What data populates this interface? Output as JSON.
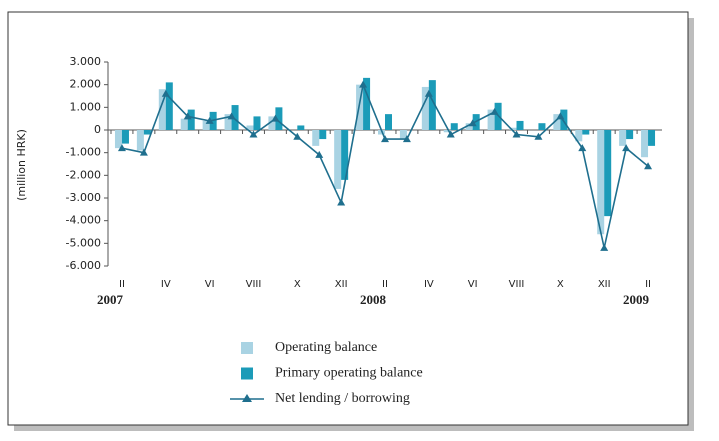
{
  "chart_data": {
    "type": "bar_line",
    "y_label": "(million HRK)",
    "categories": [
      "II",
      null,
      "IV",
      null,
      "VI",
      null,
      "VIII",
      null,
      "X",
      null,
      "XII",
      null,
      "II",
      null,
      "IV",
      null,
      "VI",
      null,
      "VIII",
      null,
      "X",
      null,
      "XII",
      null,
      "II"
    ],
    "year_labels": [
      "2007",
      "2008",
      "2009"
    ],
    "ylim": [
      -6000,
      3000
    ],
    "yticks": [
      {
        "value": 3000,
        "label": "3.000"
      },
      {
        "value": 2000,
        "label": "2.000"
      },
      {
        "value": 1000,
        "label": "1.000"
      },
      0,
      {
        "value": -1000,
        "label": "-1.000"
      },
      {
        "value": -2000,
        "label": "-2.000"
      },
      {
        "value": -3000,
        "label": "-3.000"
      },
      {
        "value": -4000,
        "label": "-4.000"
      },
      {
        "value": -5000,
        "label": "-5.000"
      },
      {
        "value": -6000,
        "label": "-6.000"
      }
    ],
    "series": [
      {
        "name": "Operating balance",
        "color": "#a9d3e3",
        "kind": "bar",
        "values": [
          -800,
          -900,
          1800,
          500,
          400,
          700,
          200,
          600,
          0,
          -700,
          -2600,
          2000,
          -200,
          -400,
          1900,
          -100,
          300,
          900,
          100,
          0,
          700,
          -500,
          -4600,
          -700,
          -1200
        ]
      },
      {
        "name": "Primary operating balance",
        "color": "#1b9bb8",
        "kind": "bar",
        "values": [
          -600,
          -200,
          2100,
          900,
          800,
          1100,
          600,
          1000,
          200,
          -400,
          -2200,
          2300,
          700,
          0,
          2200,
          300,
          700,
          1200,
          400,
          300,
          900,
          -200,
          -3800,
          -400,
          -700
        ]
      },
      {
        "name": "Net lending / borrowing",
        "color": "#1f6f8e",
        "kind": "line",
        "values": [
          -800,
          -1000,
          1600,
          600,
          400,
          600,
          -200,
          500,
          -300,
          -1100,
          -3200,
          2000,
          -400,
          -400,
          1600,
          -200,
          300,
          800,
          -200,
          -300,
          600,
          -800,
          -5200,
          -800,
          -1600
        ]
      }
    ]
  }
}
